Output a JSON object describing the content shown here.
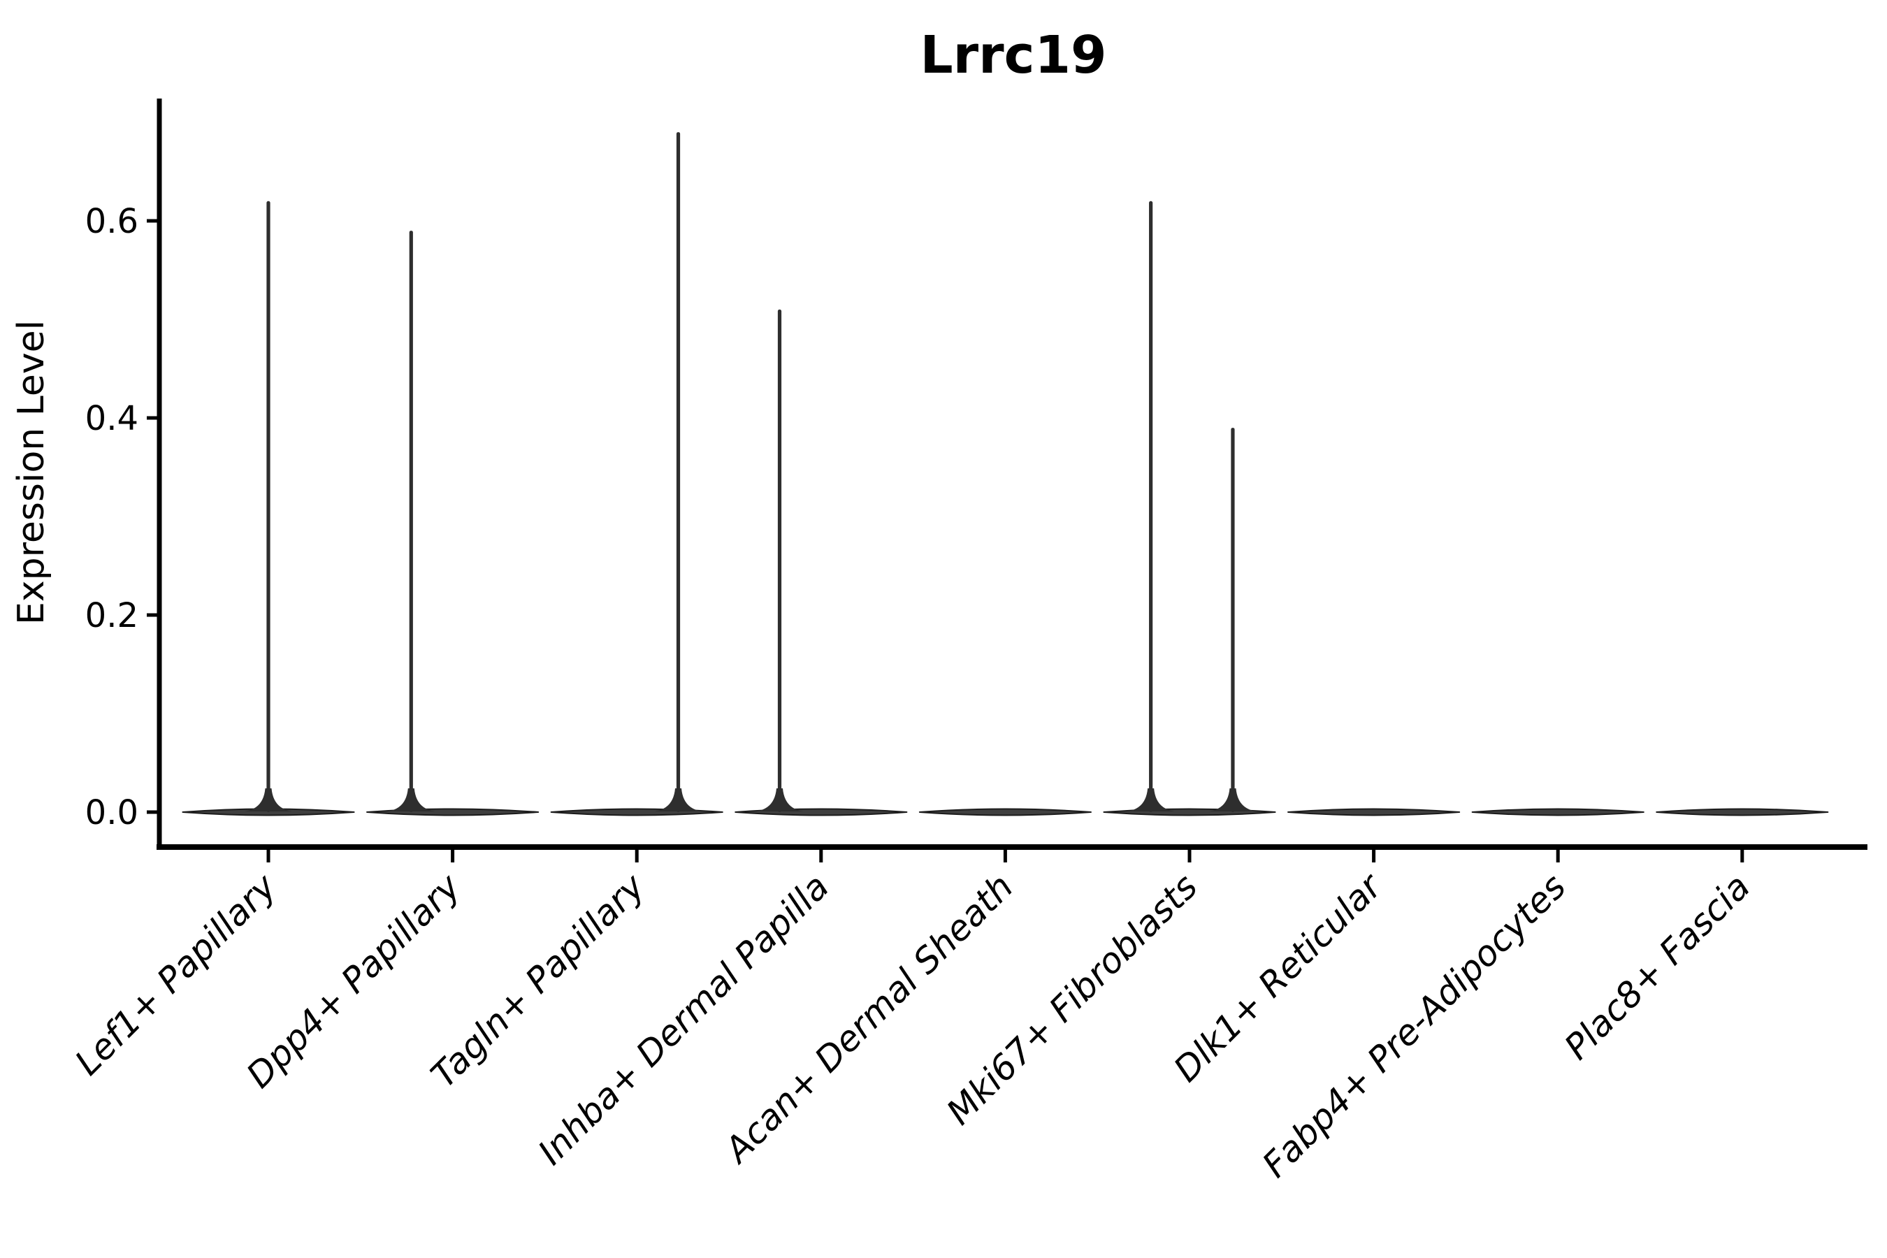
{
  "chart_data": {
    "type": "violin",
    "title": "Lrrc19",
    "xlabel": "",
    "ylabel": "Expression Level",
    "ylim": [
      -0.04,
      0.72
    ],
    "yticks": [
      0.0,
      0.2,
      0.4,
      0.6
    ],
    "ytick_labels": [
      "0.0",
      "0.2",
      "0.4",
      "0.6"
    ],
    "grid": false,
    "legend": "none",
    "categories": [
      "Lef1+ Papillary",
      "Dpp4+ Papillary",
      "Tagln+ Papillary",
      "Inhba+ Dermal Papilla",
      "Acan+ Dermal Sheath",
      "Mki67+ Fibroblasts",
      "Dlk1+ Reticular",
      "Fabp4+ Pre-Adipocytes",
      "Plac8+ Fascia"
    ],
    "violins": [
      {
        "category": "Lef1+ Papillary",
        "baseline_value": 0.0,
        "base_width_frac": 0.93,
        "spikes": [
          {
            "offset_frac": 0.0,
            "value": 0.62
          }
        ]
      },
      {
        "category": "Dpp4+ Papillary",
        "baseline_value": 0.0,
        "base_width_frac": 0.93,
        "spikes": [
          {
            "offset_frac": -0.225,
            "value": 0.59
          }
        ]
      },
      {
        "category": "Tagln+ Papillary",
        "baseline_value": 0.0,
        "base_width_frac": 0.93,
        "spikes": [
          {
            "offset_frac": 0.225,
            "value": 0.69
          }
        ]
      },
      {
        "category": "Inhba+ Dermal Papilla",
        "baseline_value": 0.0,
        "base_width_frac": 0.93,
        "spikes": [
          {
            "offset_frac": -0.225,
            "value": 0.51
          }
        ]
      },
      {
        "category": "Acan+ Dermal Sheath",
        "baseline_value": 0.0,
        "base_width_frac": 0.93,
        "spikes": []
      },
      {
        "category": "Mki67+ Fibroblasts",
        "baseline_value": 0.0,
        "base_width_frac": 0.93,
        "spikes": [
          {
            "offset_frac": -0.21,
            "value": 0.62
          },
          {
            "offset_frac": 0.235,
            "value": 0.39
          }
        ]
      },
      {
        "category": "Dlk1+ Reticular",
        "baseline_value": 0.0,
        "base_width_frac": 0.93,
        "spikes": []
      },
      {
        "category": "Fabp4+ Pre-Adipocytes",
        "baseline_value": 0.0,
        "base_width_frac": 0.93,
        "spikes": []
      },
      {
        "category": "Plac8+ Fascia",
        "baseline_value": 0.0,
        "base_width_frac": 0.93,
        "spikes": []
      }
    ]
  },
  "colors": {
    "background": "#ffffff",
    "axis": "#000000",
    "text": "#000000",
    "violin_fill": "#3f3f3f",
    "violin_edge": "#1c1c1c",
    "spike_fill": "#2e2e2e"
  }
}
